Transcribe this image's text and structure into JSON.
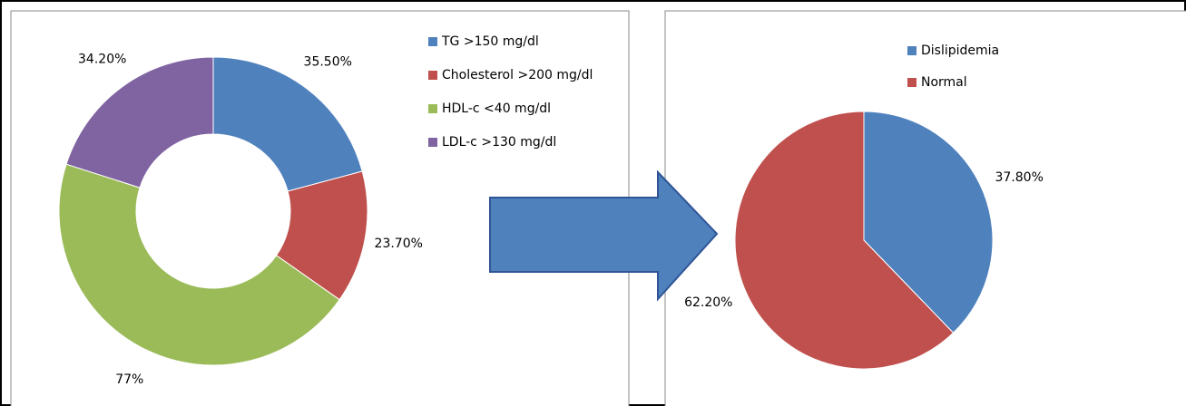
{
  "chart_data": [
    {
      "type": "donut",
      "categories": [
        "TG >150 mg/dl",
        "Cholesterol >200 mg/dl",
        "HDL-c <40 mg/dl",
        "LDL-c >130 mg/dl"
      ],
      "values": [
        35.5,
        23.7,
        77,
        34.2
      ],
      "value_labels": [
        "35.50%",
        "23.70%",
        "77%",
        "34.20%"
      ],
      "colors": [
        "#4f81bd",
        "#c0504d",
        "#9bbb59",
        "#8064a2"
      ]
    },
    {
      "type": "pie",
      "categories": [
        "Dislipidemia",
        "Normal"
      ],
      "values": [
        37.8,
        62.2
      ],
      "value_labels": [
        "37.80%",
        "62.20%"
      ],
      "colors": [
        "#4f81bd",
        "#c0504d"
      ]
    }
  ]
}
